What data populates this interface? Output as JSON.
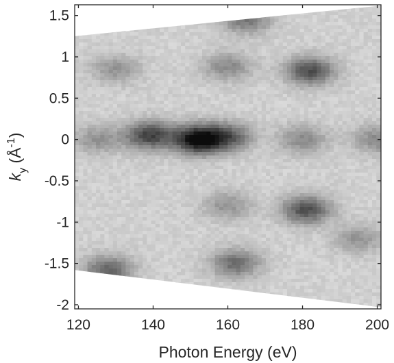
{
  "chart_data": {
    "type": "heatmap",
    "title": "",
    "xlabel": "Photon Energy (eV)",
    "ylabel": {
      "k": "k",
      "sub": "y",
      "unit_open": " (Å",
      "unit_sup": "-1",
      "unit_close": ")"
    },
    "xlim": [
      119,
      201
    ],
    "ylim": [
      -2.05,
      1.63
    ],
    "xticks": [
      120,
      140,
      160,
      180,
      200
    ],
    "xtick_labels": [
      "120",
      "140",
      "160",
      "180",
      "200"
    ],
    "yticks": [
      1.5,
      1,
      0.5,
      0,
      -0.5,
      -1,
      -1.5,
      -2
    ],
    "ytick_labels": [
      "1.5",
      "1",
      "0.5",
      "0",
      "-0.5",
      "-1",
      "-1.5",
      "-2"
    ],
    "colormap": "gray (white = low intensity, black = high intensity)",
    "grid": false,
    "data_region": {
      "x_range": [
        119,
        201
      ],
      "upper_edge": {
        "x": [
          119,
          201
        ],
        "y": [
          1.25,
          1.62
        ]
      },
      "lower_edge": {
        "x": [
          119,
          201
        ],
        "y": [
          -1.58,
          -2.03
        ]
      }
    },
    "intensity_features": [
      {
        "energy": 152,
        "ky": 0.0,
        "intensity": 1.0
      },
      {
        "energy": 139,
        "ky": 0.05,
        "intensity": 0.7
      },
      {
        "energy": 160,
        "ky": 0.03,
        "intensity": 0.55
      },
      {
        "energy": 182,
        "ky": 0.83,
        "intensity": 0.65
      },
      {
        "energy": 181,
        "ky": -0.85,
        "intensity": 0.65
      },
      {
        "energy": 160,
        "ky": 0.88,
        "intensity": 0.35
      },
      {
        "energy": 160,
        "ky": -0.8,
        "intensity": 0.3
      },
      {
        "energy": 130,
        "ky": 0.85,
        "intensity": 0.3
      },
      {
        "energy": 128,
        "ky": -1.58,
        "intensity": 0.55
      },
      {
        "energy": 162,
        "ky": -1.5,
        "intensity": 0.5
      },
      {
        "energy": 165,
        "ky": 1.45,
        "intensity": 0.45
      },
      {
        "energy": 180,
        "ky": 0.0,
        "intensity": 0.35
      },
      {
        "energy": 200,
        "ky": 0.0,
        "intensity": 0.35
      },
      {
        "energy": 125,
        "ky": 0.0,
        "intensity": 0.3
      },
      {
        "energy": 195,
        "ky": -1.2,
        "intensity": 0.3
      }
    ]
  }
}
